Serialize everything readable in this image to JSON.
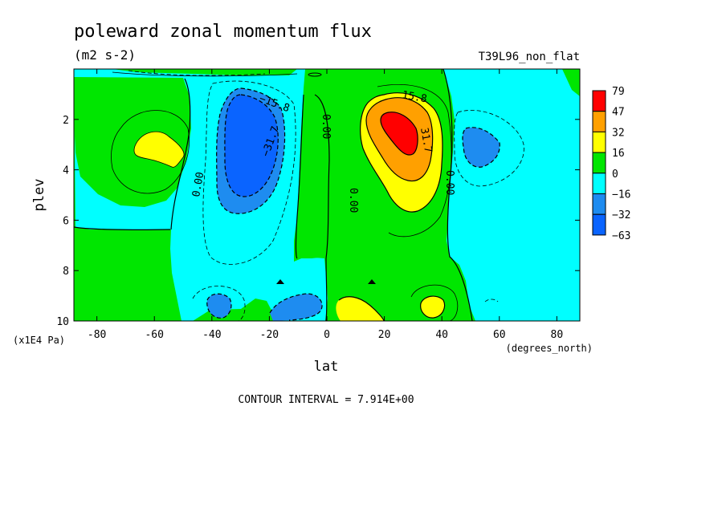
{
  "title": "poleward zonal momentum flux",
  "units": "(m2 s-2)",
  "run_name": "T39L96_non_flat",
  "contour_interval": "CONTOUR INTERVAL = 7.914E+00",
  "colors": {
    "neg63": "#0a64ff",
    "neg32": "#1e8cf0",
    "neg16": "#00ffff",
    "zero": "#00e600",
    "pos16": "#ffff00",
    "pos32": "#ffa000",
    "pos47": "#ff0000"
  },
  "chart_data": {
    "type": "heatmap",
    "xlabel": "lat",
    "xlabel_units": "(degrees_north)",
    "ylabel": "plev",
    "ylabel_units": "(x1E4 Pa)",
    "xlim": [
      -88,
      88
    ],
    "ylim": [
      0,
      10
    ],
    "y_inverted": true,
    "x_ticks": [
      "-80",
      "-60",
      "-40",
      "-20",
      "0",
      "20",
      "40",
      "60",
      "80"
    ],
    "x_tick_values": [
      -80,
      -60,
      -40,
      -20,
      0,
      20,
      40,
      60,
      80
    ],
    "y_ticks": [
      "2",
      "4",
      "6",
      "8",
      "10"
    ],
    "y_tick_values": [
      2,
      4,
      6,
      8,
      10
    ],
    "colorbar_labels": [
      "79",
      "47",
      "32",
      "16",
      "0",
      "−16",
      "−32",
      "−63"
    ],
    "contour_labels": [
      "−15.8",
      "−31.7",
      "0.00",
      "0.00",
      "0.00",
      "0.00",
      "15.8",
      "31.7"
    ],
    "features": [
      {
        "kind": "min",
        "lat": -28,
        "plev": 3.0,
        "value": -63
      },
      {
        "kind": "max",
        "lat": 27,
        "plev": 2.7,
        "value": 79
      },
      {
        "kind": "min",
        "lat": 53,
        "plev": 3.2,
        "value": -32
      },
      {
        "kind": "max",
        "lat": -55,
        "plev": 3.2,
        "value": 16
      },
      {
        "kind": "min",
        "lat": -38,
        "plev": 9.5,
        "value": -32
      },
      {
        "kind": "min",
        "lat": -12,
        "plev": 9.4,
        "value": -32
      },
      {
        "kind": "max",
        "lat": 12,
        "plev": 9.5,
        "value": 16
      },
      {
        "kind": "max",
        "lat": 38,
        "plev": 9.4,
        "value": 16
      }
    ]
  }
}
